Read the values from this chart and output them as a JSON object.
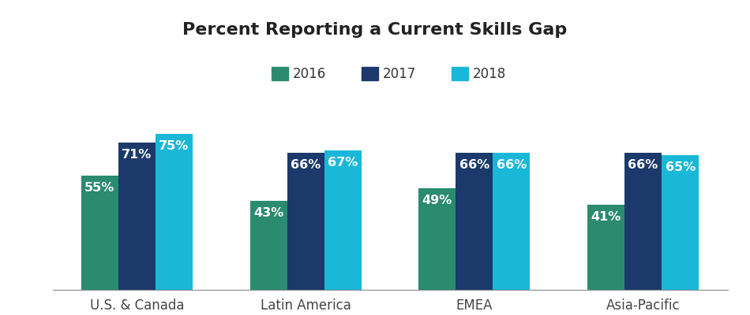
{
  "title": "Percent Reporting a Current Skills Gap",
  "categories": [
    "U.S. & Canada",
    "Latin America",
    "EMEA",
    "Asia-Pacific"
  ],
  "years": [
    "2016",
    "2017",
    "2018"
  ],
  "values": {
    "2016": [
      55,
      43,
      49,
      41
    ],
    "2017": [
      71,
      66,
      66,
      66
    ],
    "2018": [
      75,
      67,
      66,
      65
    ]
  },
  "colors": {
    "2016": "#2a8b6f",
    "2017": "#1b3a6b",
    "2018": "#1ab8d8"
  },
  "bar_width": 0.22,
  "ylim": [
    0,
    88
  ],
  "label_color": "#ffffff",
  "label_fontsize": 11.5,
  "title_fontsize": 16,
  "legend_fontsize": 12,
  "xlabel_fontsize": 12,
  "grid_color": "#cccccc",
  "grid_linestyle": ":",
  "background_color": "#ffffff"
}
